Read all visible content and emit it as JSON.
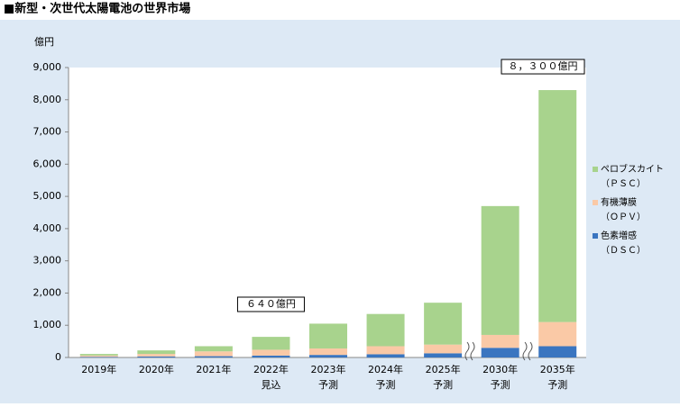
{
  "page_title": "■新型・次世代太陽電池の世界市場",
  "chart_data": {
    "type": "stacked-bar",
    "y_label": "億円",
    "categories": [
      [
        "2019年"
      ],
      [
        "2020年"
      ],
      [
        "2021年"
      ],
      [
        "2022年",
        "見込"
      ],
      [
        "2023年",
        "予測"
      ],
      [
        "2024年",
        "予測"
      ],
      [
        "2025年",
        "予測"
      ],
      [
        "2030年",
        "予測"
      ],
      [
        "2035年",
        "予測"
      ]
    ],
    "series": [
      {
        "name": [
          "色素増感",
          "（ＤＳＣ）"
        ],
        "color": "#3a75c0",
        "values": [
          20,
          30,
          40,
          60,
          80,
          100,
          130,
          300,
          350
        ]
      },
      {
        "name": [
          "有機薄膜",
          "（ＯＰＶ）"
        ],
        "color": "#fac9a6",
        "values": [
          40,
          80,
          150,
          180,
          200,
          250,
          270,
          400,
          750
        ]
      },
      {
        "name": [
          "ペロブスカイト",
          "（ＰＳＣ）"
        ],
        "color": "#a8d38d",
        "values": [
          50,
          110,
          160,
          400,
          770,
          1000,
          1300,
          4000,
          7200
        ]
      }
    ],
    "annotations": [
      {
        "text": "６４０億円",
        "category": 3
      },
      {
        "text": "８，３００億円",
        "category": 8
      }
    ],
    "ylim": [
      0,
      9000
    ],
    "yticks": [
      0,
      {
        "value": 1000,
        "label": "1,000"
      },
      {
        "value": 2000,
        "label": "2,000"
      },
      {
        "value": 3000,
        "label": "3,000"
      },
      {
        "value": 4000,
        "label": "4,000"
      },
      {
        "value": 5000,
        "label": "5,000"
      },
      {
        "value": 6000,
        "label": "6,000"
      },
      {
        "value": 7000,
        "label": "7,000"
      },
      {
        "value": 8000,
        "label": "8,000"
      },
      {
        "value": 9000,
        "label": "9,000"
      }
    ],
    "grid": false
  }
}
